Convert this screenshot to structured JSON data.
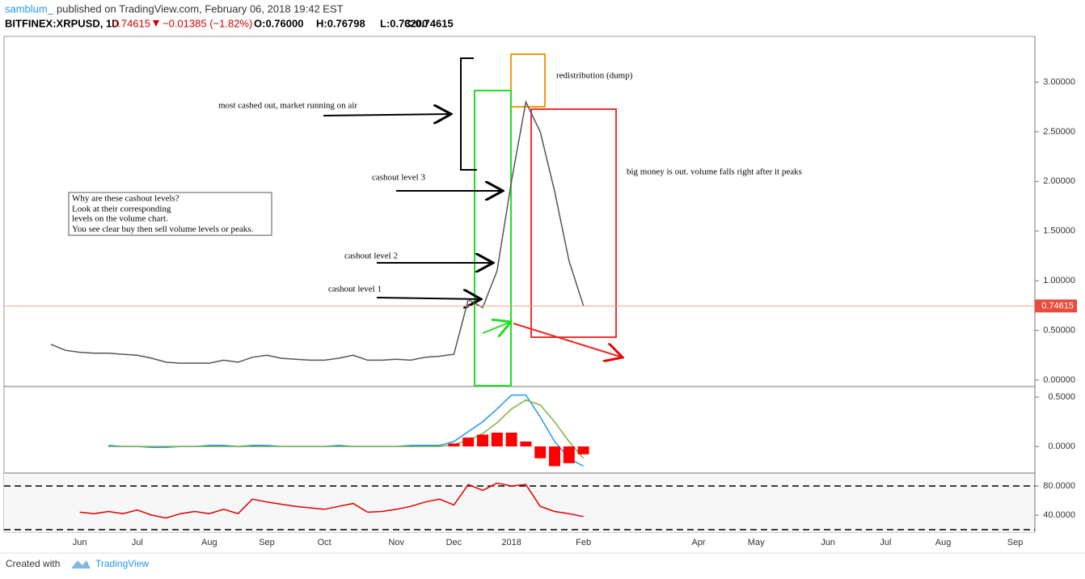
{
  "header": {
    "author": "samblum_",
    "published": "published on TradingView.com, February 06, 2018 19:42 EST",
    "symbol": "BITFINEX:XRPUSD, 1D",
    "price": "0.74615",
    "change": "−0.01385 (−1.82%)",
    "open": "O:0.76000",
    "high": "H:0.76798",
    "low": "L:0.73200",
    "close": "C:0.74615"
  },
  "annotations": {
    "dump": "redistribution (dump)",
    "air": "most cashed out, market running on air",
    "level3": "cashout level 3",
    "bigmoney": "big money is out. volume falls right after it peaks",
    "level2": "cashout level 2",
    "level1": "cashout level 1",
    "note": [
      "Why are these cashout levels?",
      "Look at their corresponding",
      "levels on the volume chart.",
      "You see clear buy then sell volume levels or peaks."
    ]
  },
  "footer": {
    "created": "Created with",
    "brand": "TradingView"
  },
  "chart_data": [
    {
      "type": "line",
      "color": "#555555",
      "categories": [
        null,
        null,
        "Jun",
        null,
        null,
        null,
        "Jul",
        null,
        null,
        null,
        null,
        "Aug",
        null,
        null,
        null,
        "Sep",
        null,
        null,
        null,
        "Oct",
        null,
        null,
        null,
        null,
        "Nov",
        null,
        null,
        null,
        "Dec",
        null,
        null,
        null,
        "2018",
        null,
        null,
        null,
        null,
        "Feb",
        null,
        null,
        null,
        null,
        null,
        null,
        null,
        "Apr",
        null,
        null,
        null,
        "May",
        null,
        null,
        null,
        null,
        "Jun",
        null,
        null,
        null,
        "Jul",
        null,
        null,
        null,
        "Aug",
        null,
        null,
        null,
        null,
        "Sep"
      ],
      "values": [
        0.36,
        0.3,
        0.28,
        0.27,
        0.27,
        0.26,
        0.25,
        0.22,
        0.18,
        0.17,
        0.17,
        0.17,
        0.2,
        0.18,
        0.23,
        0.25,
        0.22,
        0.21,
        0.2,
        0.2,
        0.22,
        0.25,
        0.2,
        0.2,
        0.21,
        0.2,
        0.23,
        0.24,
        0.26,
        0.81,
        0.73,
        1.1,
        2.0,
        2.8,
        2.5,
        1.9,
        1.2,
        0.75,
        null,
        null,
        null,
        null,
        null,
        null,
        null,
        null,
        null,
        null,
        null,
        null,
        null,
        null,
        null,
        null,
        null,
        null,
        null,
        null,
        null,
        null,
        null,
        null,
        null,
        null,
        null,
        null,
        null,
        null
      ],
      "ylim": [
        -0.065,
        3.46
      ],
      "yticks": [
        {
          "value": 0,
          "label": "0.00000"
        },
        {
          "value": 0.5,
          "label": "0.50000"
        },
        {
          "value": 1,
          "label": "1.00000"
        },
        {
          "value": 1.5,
          "label": "1.50000"
        },
        {
          "value": 2,
          "label": "2.00000"
        },
        {
          "value": 2.5,
          "label": "2.50000"
        },
        {
          "value": 3,
          "label": "3.00000"
        }
      ],
      "last_price": {
        "value": 0.74615,
        "label": "0.74615"
      }
    },
    {
      "type": "line",
      "series": [
        {
          "color": "#2196f3",
          "values": [
            null,
            null,
            null,
            null,
            0.01,
            0,
            0,
            -0.01,
            -0.01,
            0,
            0,
            0.01,
            0.01,
            0,
            0.01,
            0.01,
            0,
            0,
            0,
            0,
            0.01,
            0,
            0,
            0,
            0,
            0.01,
            0.01,
            0.01,
            0.05,
            0.15,
            0.25,
            0.38,
            0.52,
            0.52,
            0.3,
            0.05,
            -0.12,
            -0.2,
            null,
            null,
            null,
            null,
            null,
            null,
            null,
            null,
            null,
            null,
            null,
            null,
            null,
            null,
            null,
            null,
            null,
            null,
            null,
            null,
            null,
            null,
            null,
            null,
            null,
            null,
            null,
            null,
            null,
            null
          ]
        },
        {
          "color": "#7cb342",
          "values": [
            null,
            null,
            null,
            null,
            0,
            0,
            0,
            0,
            0,
            0,
            0,
            0,
            0,
            0,
            0,
            0,
            0,
            0,
            0,
            0,
            0,
            0,
            0,
            0,
            0,
            0,
            0,
            0,
            0.02,
            0.06,
            0.13,
            0.24,
            0.38,
            0.47,
            0.42,
            0.25,
            0.05,
            -0.12,
            null,
            null,
            null,
            null,
            null,
            null,
            null,
            null,
            null,
            null,
            null,
            null,
            null,
            null,
            null,
            null,
            null,
            null,
            null,
            null,
            null,
            null,
            null,
            null,
            null,
            null,
            null,
            null,
            null,
            null
          ]
        },
        {
          "type": "bar",
          "color": "#ff0000",
          "values": [
            null,
            null,
            null,
            null,
            0,
            0,
            0,
            0,
            0,
            0,
            0,
            0,
            0,
            0,
            0,
            0,
            0,
            0,
            0,
            0,
            0,
            0,
            0,
            0,
            0,
            0,
            0,
            0,
            0.03,
            0.09,
            0.12,
            0.14,
            0.14,
            0.05,
            -0.12,
            -0.2,
            -0.17,
            -0.08,
            null,
            null,
            null,
            null,
            null,
            null,
            null,
            null,
            null,
            null,
            null,
            null,
            null,
            null,
            null,
            null,
            null,
            null,
            null,
            null,
            null,
            null,
            null,
            null,
            null,
            null,
            null,
            null,
            null,
            null
          ]
        }
      ],
      "ylim": [
        -0.27,
        0.607
      ],
      "yticks": [
        {
          "value": 0,
          "label": "0.0000"
        },
        {
          "value": 0.5,
          "label": "0.5000"
        }
      ]
    },
    {
      "type": "line",
      "color": "#e00000",
      "values": [
        null,
        null,
        44,
        42,
        45,
        42,
        47,
        40,
        36,
        42,
        45,
        42,
        48,
        42,
        62,
        58,
        55,
        52,
        50,
        48,
        52,
        56,
        44,
        45,
        48,
        52,
        58,
        62,
        54,
        82,
        74,
        84,
        80,
        82,
        52,
        45,
        42,
        38,
        null,
        null,
        null,
        null,
        null,
        null,
        null,
        null,
        null,
        null,
        null,
        null,
        null,
        null,
        null,
        null,
        null,
        null,
        null,
        null,
        null,
        null,
        null,
        null,
        null,
        null,
        null,
        null,
        null,
        null
      ],
      "ylim": [
        16.7,
        97.8
      ],
      "yticks": [
        {
          "value": 40,
          "label": "40.0000"
        },
        {
          "value": 80,
          "label": "80.0000"
        }
      ],
      "hlines": [
        80,
        20
      ]
    }
  ]
}
